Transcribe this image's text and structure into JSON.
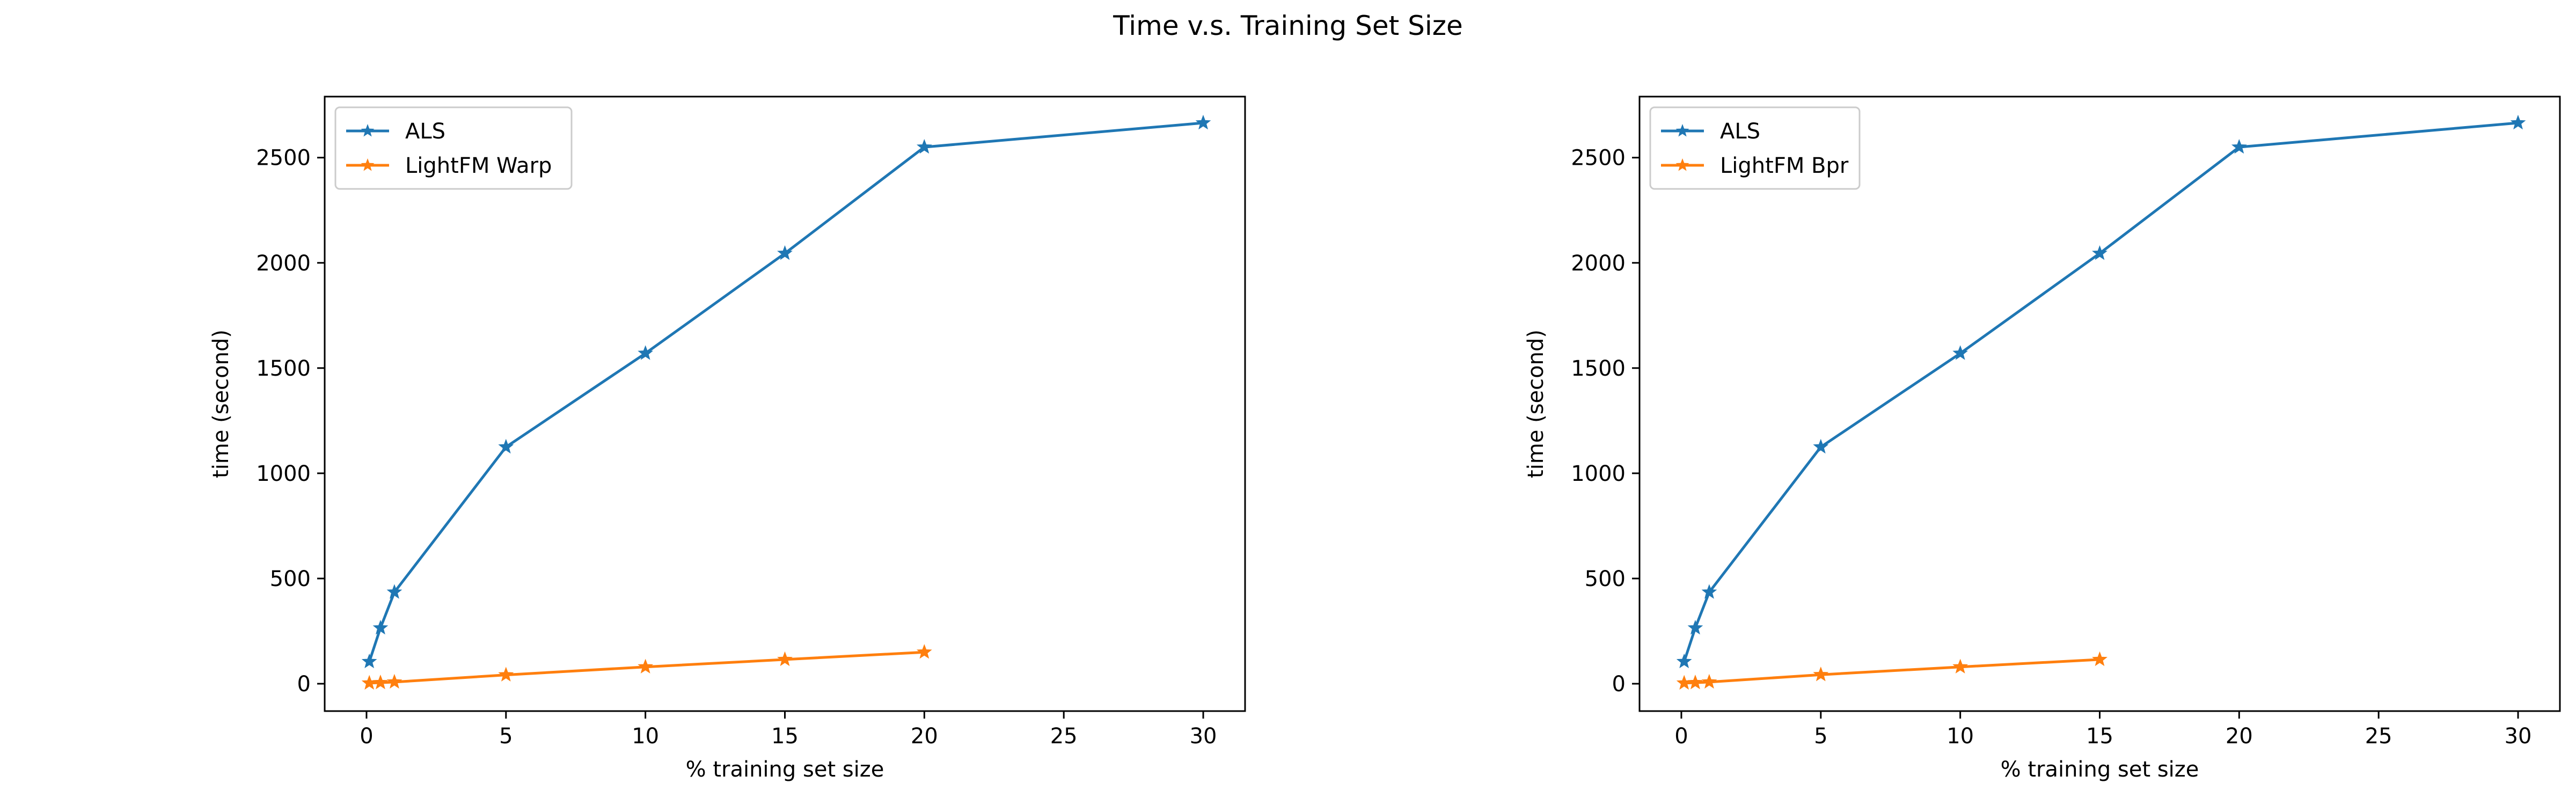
{
  "figure": {
    "title": "Time v.s. Training Set Size"
  },
  "chart_data": [
    {
      "type": "line",
      "xlabel": "% training set size",
      "ylabel": "time (second)",
      "xlim": [
        -1.5,
        31.5
      ],
      "ylim": [
        -130,
        2790
      ],
      "xticks": [
        0,
        5,
        10,
        15,
        20,
        25,
        30
      ],
      "yticks": [
        0,
        500,
        1000,
        1500,
        2000,
        2500
      ],
      "grid": false,
      "legend_position": "upper-left",
      "series": [
        {
          "name": "ALS",
          "color": "#1f77b4",
          "marker": "star",
          "x": [
            0.1,
            0.5,
            1,
            5,
            10,
            15,
            20,
            30
          ],
          "y": [
            105,
            265,
            435,
            1125,
            1570,
            2045,
            2550,
            2665
          ]
        },
        {
          "name": "LightFM Warp",
          "color": "#ff7f0e",
          "marker": "star",
          "x": [
            0.1,
            0.5,
            1,
            5,
            10,
            15,
            20
          ],
          "y": [
            3,
            5,
            8,
            42,
            80,
            115,
            150
          ]
        }
      ]
    },
    {
      "type": "line",
      "xlabel": "% training set size",
      "ylabel": "time (second)",
      "xlim": [
        -1.5,
        31.5
      ],
      "ylim": [
        -130,
        2790
      ],
      "xticks": [
        0,
        5,
        10,
        15,
        20,
        25,
        30
      ],
      "yticks": [
        0,
        500,
        1000,
        1500,
        2000,
        2500
      ],
      "grid": false,
      "legend_position": "upper-left",
      "series": [
        {
          "name": "ALS",
          "color": "#1f77b4",
          "marker": "star",
          "x": [
            0.1,
            0.5,
            1,
            5,
            10,
            15,
            20,
            30
          ],
          "y": [
            105,
            265,
            435,
            1125,
            1570,
            2045,
            2550,
            2665
          ]
        },
        {
          "name": "LightFM Bpr",
          "color": "#ff7f0e",
          "marker": "star",
          "x": [
            0.1,
            0.5,
            1,
            5,
            10,
            15
          ],
          "y": [
            3,
            5,
            8,
            43,
            80,
            115
          ]
        }
      ]
    }
  ]
}
